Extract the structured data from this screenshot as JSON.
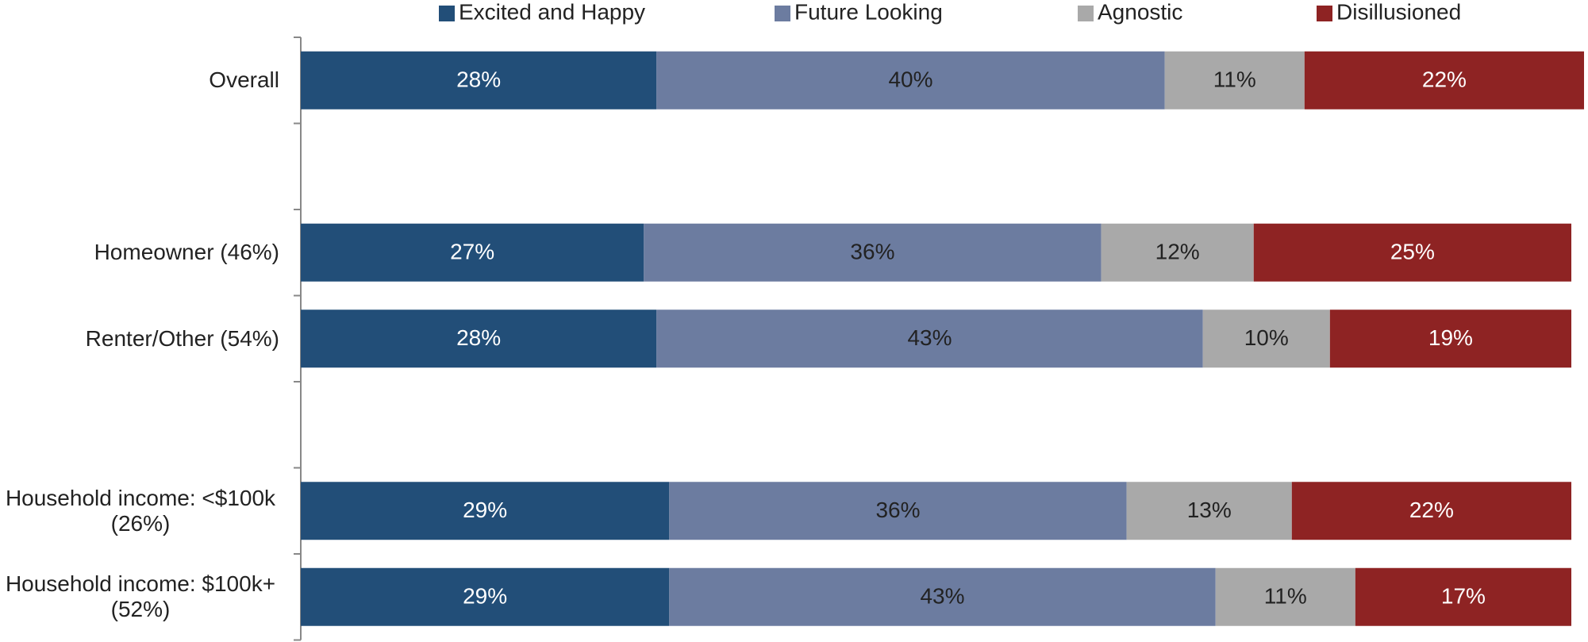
{
  "chart_data": {
    "type": "stacked-bar-horizontal",
    "categories": [
      "Overall",
      null,
      "Homeowner (46%)",
      "Renter/Other (54%)",
      null,
      "Household income: <$100k (26%)",
      "Household income: $100k+ (52%)"
    ],
    "series": [
      {
        "name": "Excited and Happy",
        "color": "#224e78",
        "values": [
          28,
          null,
          27,
          28,
          null,
          29,
          29
        ],
        "value_labels": [
          "28%",
          null,
          "27%",
          "28%",
          null,
          "29%",
          "29%"
        ]
      },
      {
        "name": "Future Looking",
        "color": "#6c7ca0",
        "values": [
          40,
          null,
          36,
          43,
          null,
          36,
          43
        ],
        "value_labels": [
          "40%",
          null,
          "36%",
          "43%",
          null,
          "36%",
          "43%"
        ]
      },
      {
        "name": "Agnostic",
        "color": "#a9a9a9",
        "values": [
          11,
          null,
          12,
          10,
          null,
          13,
          11
        ],
        "value_labels": [
          "11%",
          null,
          "12%",
          "10%",
          null,
          "13%",
          "11%"
        ]
      },
      {
        "name": "Disillusioned",
        "color": "#8e2323",
        "values": [
          22,
          null,
          25,
          19,
          null,
          22,
          17
        ],
        "value_labels": [
          "22%",
          null,
          "25%",
          "19%",
          null,
          "22%",
          "17%"
        ]
      }
    ],
    "xlim": [
      0,
      100
    ],
    "legend": "top"
  }
}
